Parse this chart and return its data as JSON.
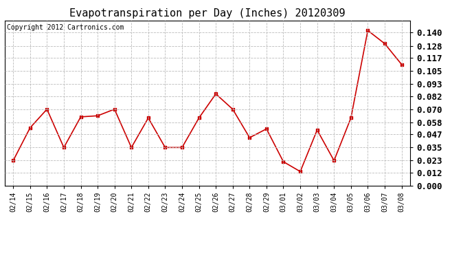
{
  "title": "Evapotranspiration per Day (Inches) 20120309",
  "copyright_text": "Copyright 2012 Cartronics.com",
  "dates": [
    "02/14",
    "02/15",
    "02/16",
    "02/17",
    "02/18",
    "02/19",
    "02/20",
    "02/21",
    "02/22",
    "02/23",
    "02/24",
    "02/25",
    "02/26",
    "02/27",
    "02/28",
    "02/29",
    "03/01",
    "03/02",
    "03/03",
    "03/04",
    "03/05",
    "03/06",
    "03/07",
    "03/08"
  ],
  "values": [
    0.023,
    0.053,
    0.07,
    0.035,
    0.063,
    0.064,
    0.07,
    0.035,
    0.062,
    0.035,
    0.035,
    0.062,
    0.084,
    0.07,
    0.044,
    0.052,
    0.022,
    0.013,
    0.051,
    0.023,
    0.062,
    0.142,
    0.13,
    0.111
  ],
  "line_color": "#cc0000",
  "marker": "s",
  "marker_size": 3,
  "ylim": [
    0.0,
    0.151
  ],
  "yticks": [
    0.0,
    0.012,
    0.023,
    0.035,
    0.047,
    0.058,
    0.07,
    0.082,
    0.093,
    0.105,
    0.117,
    0.128,
    0.14
  ],
  "background_color": "#ffffff",
  "grid_color": "#bbbbbb",
  "title_fontsize": 11,
  "copyright_fontsize": 7,
  "xtick_fontsize": 7,
  "ytick_fontsize": 9
}
